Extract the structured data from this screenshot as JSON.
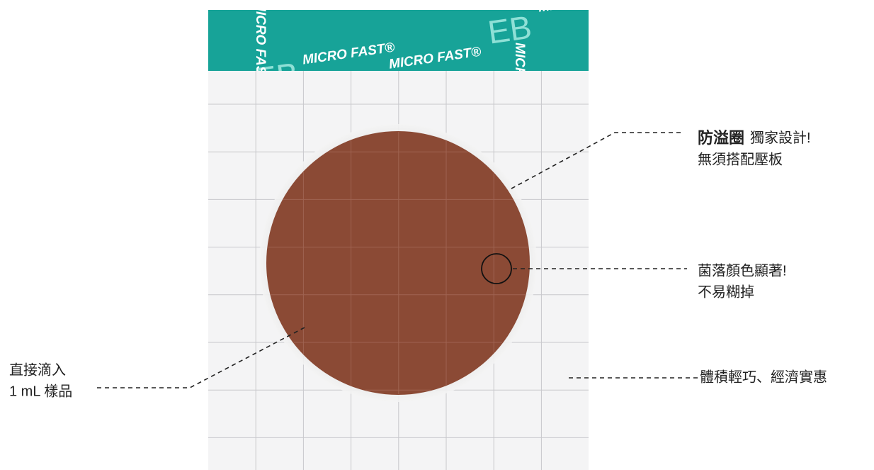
{
  "brand": {
    "name": "MICRO FAST®",
    "code": "EB"
  },
  "callouts": {
    "ring": {
      "bold": "防溢圈",
      "line1": "獨家設計!",
      "line2": "無須搭配壓板"
    },
    "colony": {
      "line1": "菌落顏色顯著!",
      "line2": "不易糊掉"
    },
    "size": {
      "line1": "體積輕巧、經濟實惠"
    },
    "sample": {
      "line1": "直接滴入",
      "line2": "1 mL 樣品"
    }
  }
}
